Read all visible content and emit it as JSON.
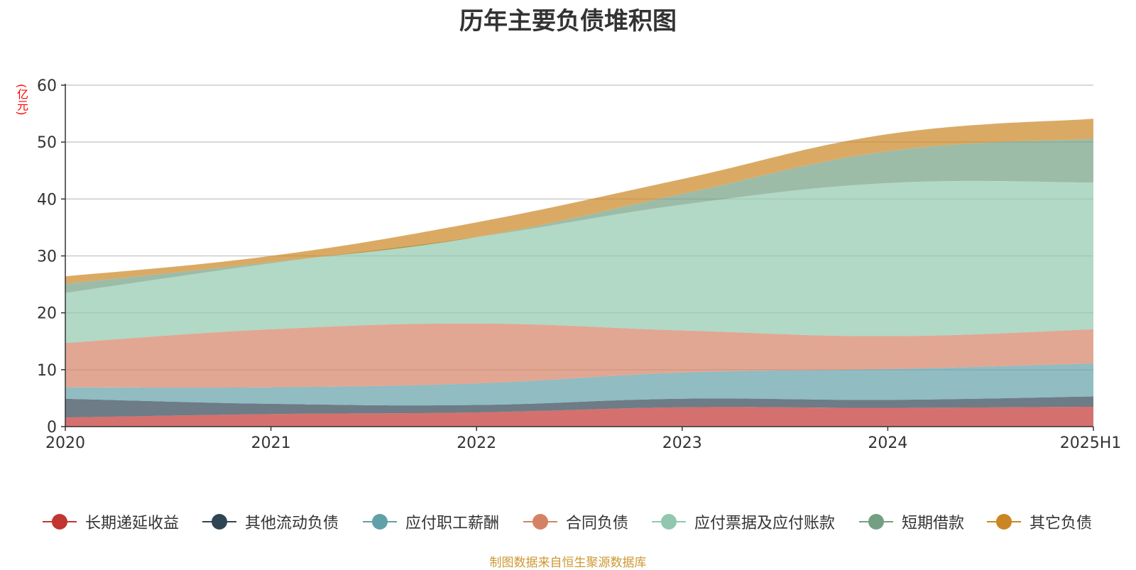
{
  "chart_data": {
    "type": "area",
    "stacked": true,
    "title": "历年主要负债堆积图",
    "ylabel": "(亿元)",
    "ylim": [
      0,
      60
    ],
    "yticks": [
      "0",
      "10",
      "20",
      "30",
      "40",
      "50",
      "60"
    ],
    "categories": [
      "2020",
      "2021",
      "2022",
      "2023",
      "2024",
      "2025H1"
    ],
    "grid": true,
    "legend_position": "bottom",
    "series": [
      {
        "name": "长期递延收益",
        "color": "#c23531",
        "values": [
          1.6,
          2.2,
          2.5,
          3.4,
          3.3,
          3.5
        ]
      },
      {
        "name": "其他流动负债",
        "color": "#2f4554",
        "values": [
          3.3,
          1.8,
          1.3,
          1.5,
          1.4,
          1.8
        ]
      },
      {
        "name": "应付职工薪酬",
        "color": "#61a0a8",
        "values": [
          2.0,
          2.9,
          3.8,
          4.6,
          5.4,
          5.8
        ]
      },
      {
        "name": "合同负债",
        "color": "#d48265",
        "values": [
          7.8,
          10.2,
          10.5,
          7.4,
          5.8,
          6.0
        ]
      },
      {
        "name": "应付票据及应付账款",
        "color": "#91c7ae",
        "values": [
          8.8,
          11.6,
          15.2,
          22.1,
          26.9,
          25.8
        ]
      },
      {
        "name": "短期借款",
        "color": "#749f83",
        "values": [
          1.6,
          0.2,
          0.0,
          1.9,
          5.6,
          7.7
        ]
      },
      {
        "name": "其它负债",
        "color": "#ca8622",
        "values": [
          1.3,
          1.1,
          2.6,
          2.6,
          3.0,
          3.5
        ]
      }
    ]
  },
  "source_note": "制图数据来自恒生聚源数据库"
}
